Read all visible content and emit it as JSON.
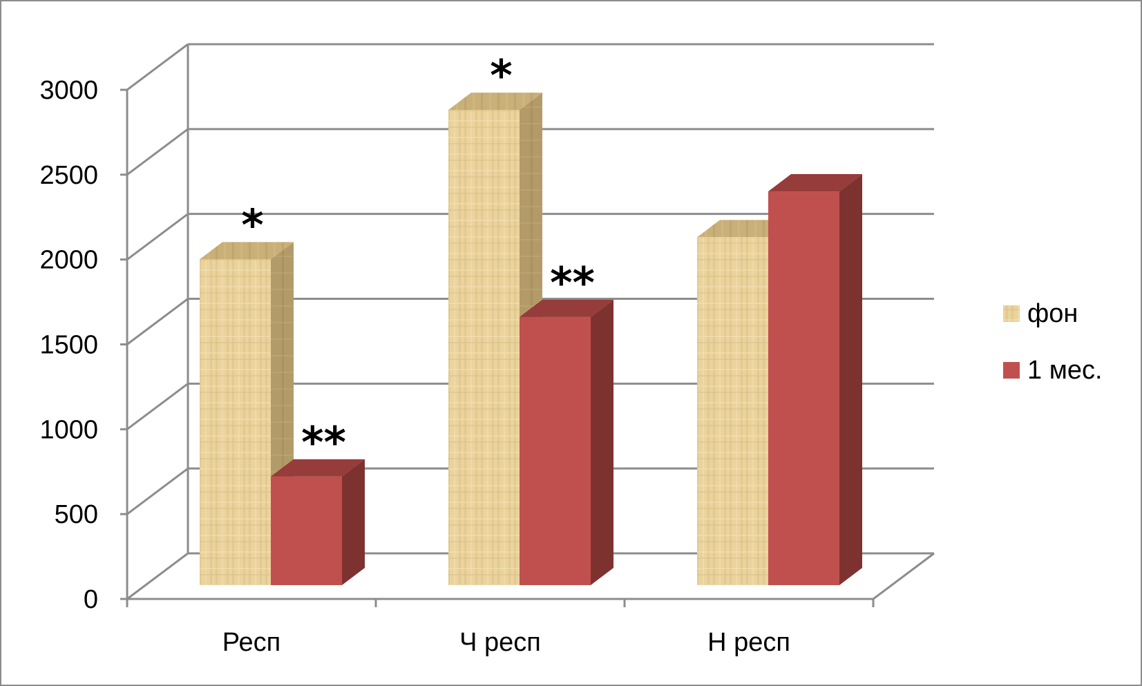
{
  "chart_data": {
    "type": "bar",
    "style": "3d-clustered-column",
    "categories": [
      "Респ",
      "Ч респ",
      "Н респ"
    ],
    "series": [
      {
        "name": "фон",
        "values": [
          1920,
          2800,
          2050
        ],
        "color": "#e8cf97",
        "pattern": "papyrus-texture"
      },
      {
        "name": "1 мес.",
        "values": [
          640,
          1580,
          2320
        ],
        "color": "#c0504d"
      }
    ],
    "ylim": [
      0,
      3000
    ],
    "y_ticks": [
      "0",
      "500",
      "1000",
      "1500",
      "2000",
      "2500",
      "3000"
    ],
    "xlabel": "",
    "ylabel": "",
    "title": "",
    "grid": true,
    "legend": "right",
    "annotations": [
      {
        "text": "*",
        "category": 0,
        "series": 0
      },
      {
        "text": "**",
        "category": 0,
        "series": 1
      },
      {
        "text": "*",
        "category": 1,
        "series": 0
      },
      {
        "text": "**",
        "category": 1,
        "series": 1
      }
    ]
  }
}
